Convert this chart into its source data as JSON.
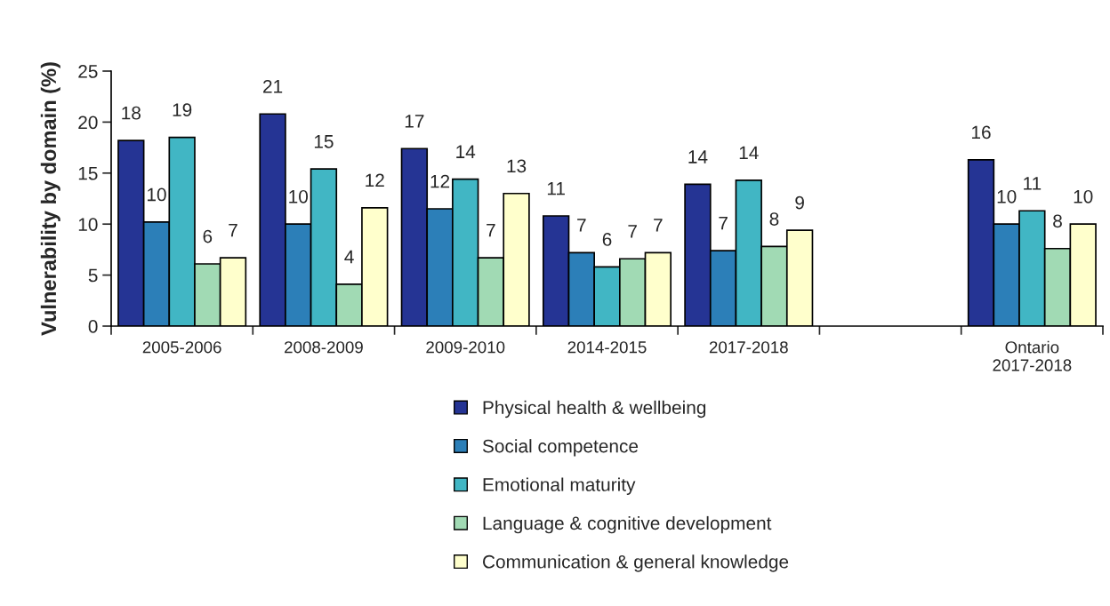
{
  "chart_data": {
    "type": "bar",
    "ylabel": "Vulnerability by domain (%)",
    "categories": [
      "2005-2006",
      "2008-2009",
      "2009-2010",
      "2014-2015",
      "2017-2018",
      null,
      "Ontario\n2017-2018"
    ],
    "series": [
      {
        "name": "Physical health & wellbeing",
        "color": "#253494",
        "values": [
          18.2,
          20.8,
          17.4,
          10.8,
          13.9,
          null,
          16.3
        ],
        "value_labels": [
          "18",
          "21",
          "17",
          "11",
          "14",
          null,
          "16"
        ]
      },
      {
        "name": "Social competence",
        "color": "#2c7fb8",
        "values": [
          10.2,
          10.0,
          11.5,
          7.2,
          7.4,
          null,
          10.0
        ],
        "value_labels": [
          "10",
          "10",
          "12",
          "7",
          "7",
          null,
          "10"
        ]
      },
      {
        "name": "Emotional maturity",
        "color": "#41b6c4",
        "values": [
          18.5,
          15.4,
          14.4,
          5.8,
          14.3,
          null,
          11.3
        ],
        "value_labels": [
          "19",
          "15",
          "14",
          "6",
          "14",
          null,
          "11"
        ]
      },
      {
        "name": "Language & cognitive development",
        "color": "#a1dab4",
        "values": [
          6.1,
          4.1,
          6.7,
          6.6,
          7.8,
          null,
          7.6
        ],
        "value_labels": [
          "6",
          "4",
          "7",
          "7",
          "8",
          null,
          "8"
        ]
      },
      {
        "name": "Communication & general knowledge",
        "color": "#ffffcc",
        "values": [
          6.7,
          11.6,
          13.0,
          7.2,
          9.4,
          null,
          10.0
        ],
        "value_labels": [
          "7",
          "12",
          "13",
          "7",
          "9",
          null,
          "10"
        ]
      }
    ],
    "ylim": [
      0,
      25
    ],
    "yticks": [
      0,
      5,
      10,
      15,
      20,
      25
    ],
    "grid": false,
    "legend": "bottom"
  }
}
